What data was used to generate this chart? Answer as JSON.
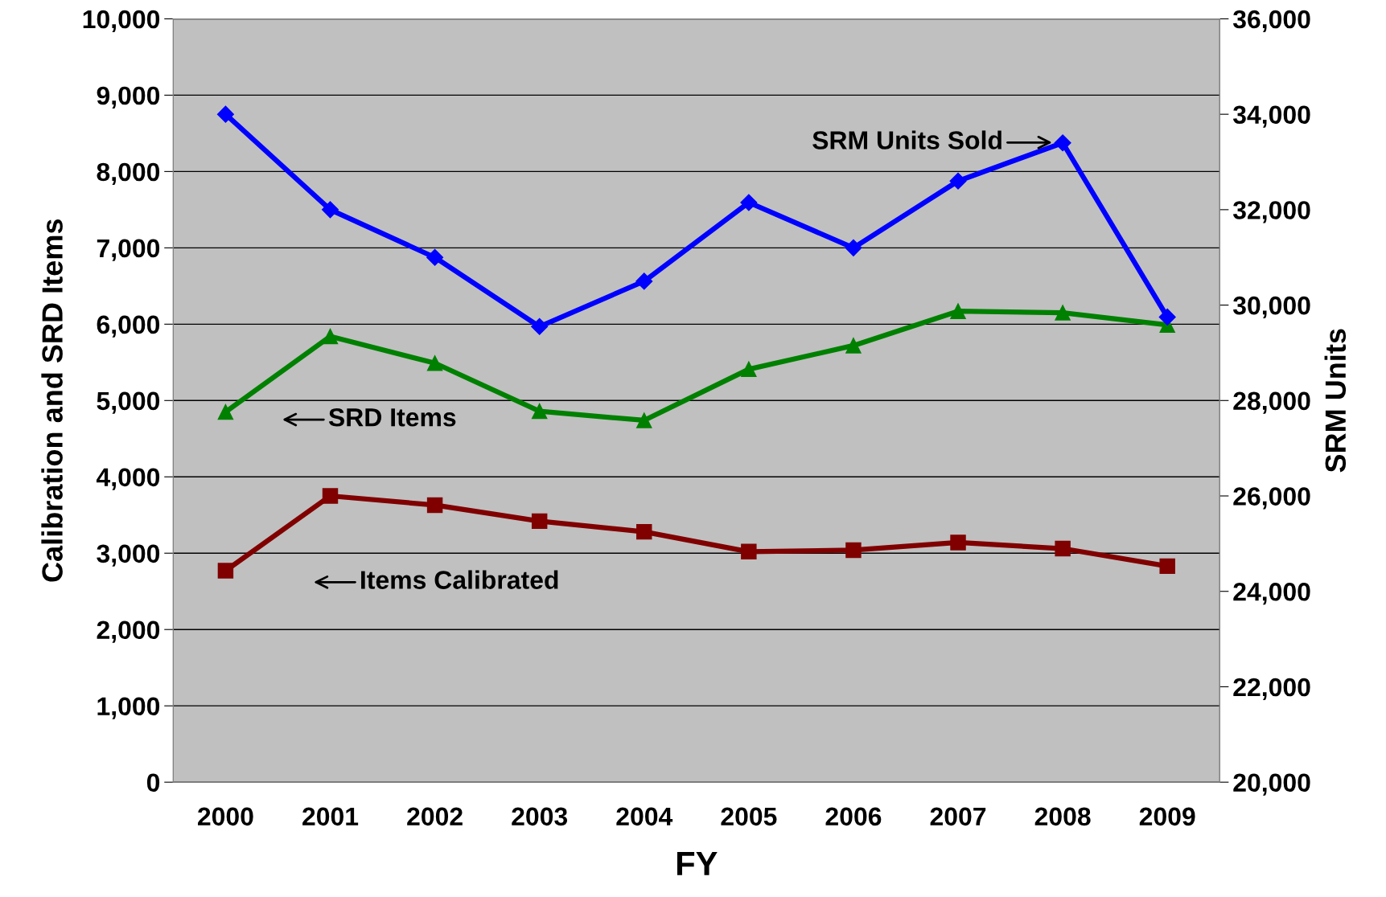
{
  "chart_data": {
    "type": "line",
    "xlabel": "FY",
    "ylabel": "Calibration and SRD Items",
    "y2label": "SRM Units",
    "categories": [
      "2000",
      "2001",
      "2002",
      "2003",
      "2004",
      "2005",
      "2006",
      "2007",
      "2008",
      "2009"
    ],
    "series": [
      {
        "name": "SRM Units Sold",
        "color": "#0000ff",
        "marker": "diamond",
        "axis": "y2",
        "values": [
          34000,
          32000,
          31000,
          29550,
          30500,
          32150,
          31200,
          32600,
          33400,
          29750
        ]
      },
      {
        "name": "SRD Items",
        "color": "#008000",
        "marker": "triangle",
        "values": [
          4850,
          5840,
          5490,
          4860,
          4740,
          5410,
          5720,
          6170,
          6150,
          5990
        ]
      },
      {
        "name": "Items Calibrated",
        "color": "#800000",
        "marker": "square",
        "values": [
          2770,
          3750,
          3630,
          3420,
          3280,
          3020,
          3040,
          3140,
          3060,
          2830
        ]
      }
    ],
    "ylim": [
      0,
      10000
    ],
    "yticks": [
      {
        "value": 0,
        "label": "0"
      },
      {
        "value": 1000,
        "label": "1,000"
      },
      {
        "value": 2000,
        "label": "2,000"
      },
      {
        "value": 3000,
        "label": "3,000"
      },
      {
        "value": 4000,
        "label": "4,000"
      },
      {
        "value": 5000,
        "label": "5,000"
      },
      {
        "value": 6000,
        "label": "6,000"
      },
      {
        "value": 7000,
        "label": "7,000"
      },
      {
        "value": 8000,
        "label": "8,000"
      },
      {
        "value": 9000,
        "label": "9,000"
      },
      {
        "value": 10000,
        "label": "10,000"
      }
    ],
    "y2lim": [
      20000,
      36000
    ],
    "y2ticks": [
      {
        "value": 20000,
        "label": "20,000"
      },
      {
        "value": 22000,
        "label": "22,000"
      },
      {
        "value": 24000,
        "label": "24,000"
      },
      {
        "value": 26000,
        "label": "26,000"
      },
      {
        "value": 28000,
        "label": "28,000"
      },
      {
        "value": 30000,
        "label": "30,000"
      },
      {
        "value": 32000,
        "label": "32,000"
      },
      {
        "value": 34000,
        "label": "34,000"
      },
      {
        "value": 36000,
        "label": "36,000"
      }
    ],
    "grid": "y",
    "legend": false,
    "line_style": "solid"
  }
}
